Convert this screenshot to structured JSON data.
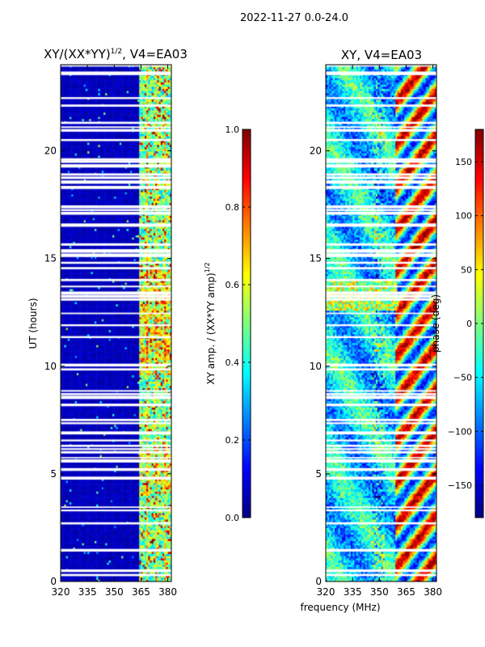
{
  "suptitle": "2022-11-27 0.0-24.0",
  "shared_xlabel": "frequency (MHz)",
  "colors": {
    "jet": [
      "#00007f",
      "#0000ff",
      "#007fff",
      "#00ffff",
      "#7fff7f",
      "#ffff00",
      "#ff7f00",
      "#ff0000",
      "#7f0000"
    ],
    "flag": "#ffffff"
  },
  "chart_data": [
    {
      "type": "heatmap",
      "title": "XY/(XX*YY)",
      "title_sup": "1/2",
      "title_suffix": ", V4=EA03",
      "xlabel": "",
      "ylabel": "UT (hours)",
      "xlim": [
        320,
        382
      ],
      "ylim": [
        0,
        24
      ],
      "xticks": [
        "320",
        "335",
        "350",
        "365",
        "380"
      ],
      "xtick_values": [
        320,
        335,
        350,
        365,
        380
      ],
      "yticks": [
        "0",
        "5",
        "10",
        "15",
        "20"
      ],
      "ytick_values": [
        0,
        5,
        10,
        15,
        20
      ],
      "colorbar": {
        "label": "XY amp. / (XX*YY amp)",
        "label_sup": "1/2",
        "range": [
          0.0,
          1.0
        ],
        "ticks": [
          "0.0",
          "0.2",
          "0.4",
          "0.6",
          "0.8",
          "1.0"
        ],
        "tick_values": [
          0.0,
          0.2,
          0.4,
          0.6,
          0.8,
          1.0
        ]
      },
      "description_values": {
        "background_amplitude": 0.05,
        "band_start_mhz": 364,
        "band_amplitude_range": [
          0.3,
          0.95
        ]
      }
    },
    {
      "type": "heatmap",
      "title": "XY, V4=EA03",
      "xlabel": "",
      "ylabel": "",
      "xlim": [
        320,
        382
      ],
      "ylim": [
        0,
        24
      ],
      "xticks": [
        "320",
        "335",
        "350",
        "365",
        "380"
      ],
      "xtick_values": [
        320,
        335,
        350,
        365,
        380
      ],
      "yticks": [
        "0",
        "5",
        "10",
        "15",
        "20"
      ],
      "ytick_values": [
        0,
        5,
        10,
        15,
        20
      ],
      "colorbar": {
        "label": "phase (deg)",
        "range": [
          -180,
          180
        ],
        "ticks": [
          "−150",
          "−100",
          "−50",
          "0",
          "50",
          "100",
          "150"
        ],
        "tick_values": [
          -150,
          -100,
          -50,
          0,
          50,
          100,
          150
        ]
      }
    }
  ],
  "flagged_hours": [
    0.3,
    0.5,
    1.45,
    2.7,
    3.3,
    3.45,
    4.8,
    5.2,
    5.6,
    5.75,
    6.0,
    6.15,
    6.3,
    6.55,
    6.9,
    7.35,
    7.5,
    8.2,
    8.55,
    8.7,
    8.85,
    9.85,
    10.05,
    11.35,
    11.9,
    12.45,
    13.1,
    13.25,
    13.4,
    13.7,
    14.0,
    14.55,
    14.8,
    15.15,
    15.35,
    15.65,
    16.55,
    17.1,
    17.25,
    17.4,
    18.3,
    18.55,
    18.75,
    18.9,
    19.3,
    19.5,
    19.6,
    20.5,
    20.95,
    21.1,
    21.3,
    22.1,
    22.45,
    23.6,
    23.95
  ]
}
